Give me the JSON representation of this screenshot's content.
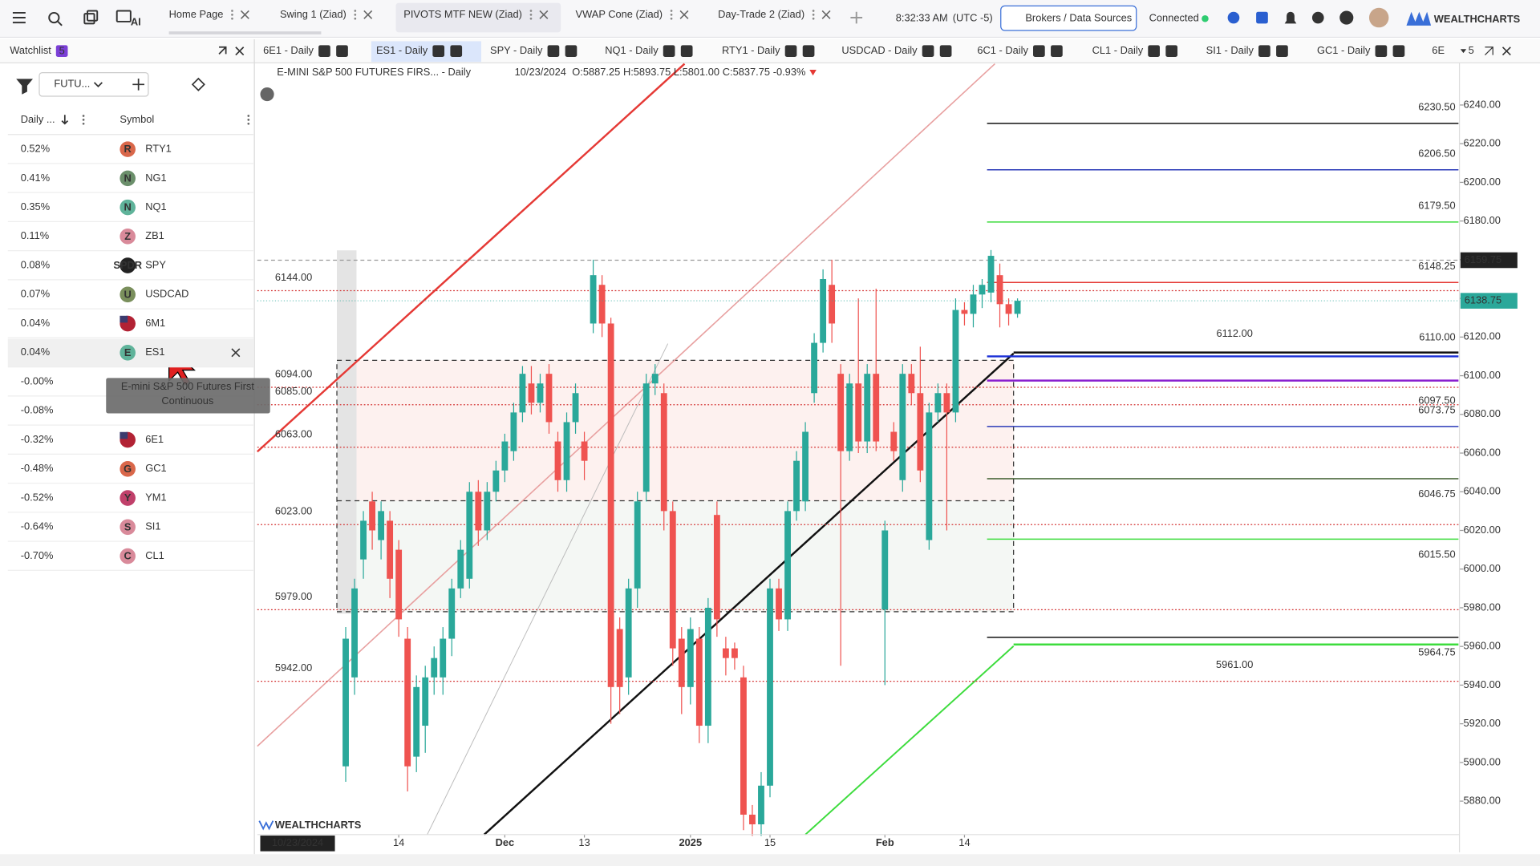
{
  "toolbar": {
    "tabs": [
      {
        "label": "Home Page"
      },
      {
        "label": "Swing 1 (Ziad)"
      },
      {
        "label": "PIVOTS MTF NEW (Ziad)",
        "active": true
      },
      {
        "label": "VWAP Cone (Ziad)"
      },
      {
        "label": "Day-Trade 2 (Ziad)"
      }
    ],
    "ai_label": "AI",
    "clock": "8:32:33 AM",
    "timezone": "(UTC -5)",
    "brokers_button": "Brokers / Data Sources",
    "status": "Connected",
    "brand": "WEALTHCHARTS"
  },
  "chart_tabs": {
    "tabs": [
      {
        "label": "6E1 - Daily"
      },
      {
        "label": "ES1 - Daily",
        "active": true
      },
      {
        "label": "SPY - Daily"
      },
      {
        "label": "NQ1 - Daily"
      },
      {
        "label": "RTY1 - Daily"
      },
      {
        "label": "USDCAD - Daily"
      },
      {
        "label": "6C1 - Daily"
      },
      {
        "label": "CL1 - Daily"
      },
      {
        "label": "SI1 - Daily"
      },
      {
        "label": "GC1 - Daily"
      },
      {
        "label": "6E",
        "truncated": true
      }
    ],
    "badges": [
      "S",
      "T"
    ],
    "layout_count": "5"
  },
  "watchlist": {
    "title": "Watchlist",
    "count": "5",
    "filter": "FUTU...",
    "columns": [
      "Daily ...",
      "Symbol"
    ],
    "rows": [
      {
        "change": "0.52%",
        "symbol": "RTY1",
        "icon": "R",
        "color": "#d9674a"
      },
      {
        "change": "0.41%",
        "symbol": "NG1",
        "icon": "N",
        "color": "#6b8f6b"
      },
      {
        "change": "0.35%",
        "symbol": "NQ1",
        "icon": "N",
        "color": "#5fb39a"
      },
      {
        "change": "0.11%",
        "symbol": "ZB1",
        "icon": "Z",
        "color": "#d98a9a"
      },
      {
        "change": "0.08%",
        "symbol": "SPY",
        "icon": "SPDR",
        "color": "#222222"
      },
      {
        "change": "0.07%",
        "symbol": "USDCAD",
        "icon": "U",
        "color": "#7a8f5c"
      },
      {
        "change": "0.04%",
        "symbol": "6M1",
        "flag": true
      },
      {
        "change": "0.04%",
        "symbol": "ES1",
        "icon": "E",
        "color": "#5fb39a",
        "selected": true
      },
      {
        "change": "-0.00%"
      },
      {
        "change": "-0.08%"
      },
      {
        "change": "-0.32%",
        "symbol": "6E1",
        "flag": true
      },
      {
        "change": "-0.48%",
        "symbol": "GC1",
        "icon": "G",
        "color": "#d9674a"
      },
      {
        "change": "-0.52%",
        "symbol": "YM1",
        "icon": "Y",
        "color": "#c0406a"
      },
      {
        "change": "-0.64%",
        "symbol": "SI1",
        "icon": "S",
        "color": "#d98a9a"
      },
      {
        "change": "-0.70%",
        "symbol": "CL1",
        "icon": "C",
        "color": "#d98a9a"
      }
    ],
    "tooltip": [
      "E-mini S&P 500 Futures First",
      "Continuous"
    ]
  },
  "chart_header": {
    "title": "E-MINI S&P 500 FUTURES FIRS... - Daily",
    "date": "10/23/2024",
    "ohlc": [
      [
        "O:",
        "5887.25"
      ],
      [
        "H:",
        "5893.75"
      ],
      [
        "L:",
        "5801.00"
      ],
      [
        "C:",
        "5837.75"
      ]
    ],
    "change": "-0.93%"
  },
  "chart_data": {
    "type": "candlestick",
    "up_color": "#2aa89a",
    "down_color": "#ef5350",
    "open": [
      5898,
      5944,
      6005,
      6035,
      6015,
      6025,
      6010,
      5964,
      5903,
      5919,
      5944,
      5944,
      5964,
      5990,
      5995,
      6040,
      6020,
      6040,
      6051,
      6061,
      6081,
      6096,
      6086,
      6101,
      6066,
      6046,
      6076,
      6066,
      6127,
      6147,
      6127,
      5969,
      5944,
      5990,
      6040,
      6096,
      6091,
      6030,
      5964,
      5939,
      5964,
      5919,
      6028,
      5959,
      5959,
      5944,
      5873,
      5868,
      5888,
      5990,
      5974,
      6030,
      6035,
      6091,
      6117,
      6147,
      6101,
      6061,
      6096,
      6066,
      6101,
      5979,
      6071,
      6046,
      6101,
      6091,
      6015,
      6081,
      6091,
      6081,
      6134,
      6132,
      6142,
      6143,
      6152,
      6137,
      6132
    ],
    "high": [
      5970,
      5995,
      6030,
      6040,
      6035,
      6030,
      6015,
      5970,
      5945,
      5950,
      5960,
      5970,
      5995,
      6015,
      6045,
      6046,
      6045,
      6056,
      6070,
      6086,
      6105,
      6105,
      6101,
      6106,
      6071,
      6081,
      6096,
      6071,
      6160,
      6152,
      6130,
      5975,
      5995,
      6040,
      6101,
      6106,
      6096,
      6035,
      5970,
      5975,
      5970,
      5985,
      6035,
      5965,
      5962,
      5950,
      5878,
      5895,
      5995,
      5995,
      6035,
      6061,
      6076,
      6122,
      6155,
      6160,
      6106,
      6101,
      6140,
      6106,
      6145,
      6025,
      6076,
      6106,
      6106,
      6115,
      6086,
      6096,
      6096,
      6140,
      6138,
      6147,
      6150,
      6165,
      6158,
      6140,
      6140
    ],
    "low": [
      5890,
      5935,
      5995,
      6010,
      6005,
      5985,
      5965,
      5885,
      5895,
      5905,
      5935,
      5935,
      5955,
      5985,
      5990,
      6012,
      6015,
      6035,
      6045,
      6056,
      6076,
      6080,
      6081,
      6070,
      6040,
      6040,
      6070,
      6046,
      6122,
      6120,
      5920,
      5925,
      5935,
      5980,
      6035,
      6090,
      6020,
      5950,
      5925,
      5930,
      5910,
      5910,
      5965,
      5945,
      5948,
      5865,
      5862,
      5862,
      5882,
      5968,
      5968,
      6025,
      6030,
      6086,
      6112,
      6117,
      5950,
      6056,
      6060,
      6060,
      6061,
      5940,
      6056,
      6040,
      6085,
      6045,
      6010,
      6076,
      6020,
      6076,
      6126,
      6125,
      6135,
      6138,
      6125,
      6126,
      6130
    ],
    "close": [
      5964,
      5990,
      6025,
      6020,
      6030,
      5995,
      5974,
      5898,
      5939,
      5944,
      5954,
      5964,
      5990,
      6010,
      6040,
      6020,
      6040,
      6051,
      6066,
      6081,
      6101,
      6086,
      6096,
      6076,
      6046,
      6076,
      6091,
      6056,
      6152,
      6127,
      5939,
      5939,
      5990,
      6035,
      6096,
      6101,
      6030,
      5959,
      5939,
      5969,
      5919,
      5980,
      5974,
      5954,
      5954,
      5873,
      5868,
      5888,
      5990,
      5974,
      6030,
      6056,
      6071,
      6117,
      6150,
      6127,
      6061,
      6096,
      6066,
      6101,
      6066,
      6020,
      6061,
      6101,
      6091,
      6051,
      6081,
      6091,
      6081,
      6134,
      6132,
      6142,
      6147,
      6162,
      6137,
      6132,
      6138.75
    ],
    "ylim": [
      5862.7,
      6261.3
    ],
    "yticks": [
      {
        "value": 5880,
        "label": "5880.00"
      },
      {
        "value": 5900,
        "label": "5900.00"
      },
      {
        "value": 5920,
        "label": "5920.00"
      },
      {
        "value": 5940,
        "label": "5940.00"
      },
      {
        "value": 5960,
        "label": "5960.00"
      },
      {
        "value": 5980,
        "label": "5980.00"
      },
      {
        "value": 6000,
        "label": "6000.00"
      },
      {
        "value": 6020,
        "label": "6020.00"
      },
      {
        "value": 6040,
        "label": "6040.00"
      },
      {
        "value": 6060,
        "label": "6060.00"
      },
      {
        "value": 6080,
        "label": "6080.00"
      },
      {
        "value": 6100,
        "label": "6100.00"
      },
      {
        "value": 6120,
        "label": "6120.00"
      },
      {
        "value": 6140,
        "label": "6140.00"
      },
      {
        "value": 6160,
        "label": "6160.00"
      },
      {
        "value": 6180,
        "label": "6180.00"
      },
      {
        "value": 6200,
        "label": "6200.00"
      },
      {
        "value": 6220,
        "label": "6220.00"
      },
      {
        "value": 6240,
        "label": "6240.00"
      }
    ],
    "xticks": [
      {
        "value": 6,
        "label": "14"
      },
      {
        "value": 18,
        "label": "Dec"
      },
      {
        "value": 27,
        "label": "13"
      },
      {
        "value": 39,
        "label": "2025"
      },
      {
        "value": 48,
        "label": "15"
      },
      {
        "value": 61,
        "label": "Feb"
      },
      {
        "value": 70,
        "label": "14"
      }
    ],
    "crosshair": {
      "date": "10/23/2024",
      "price": 6159.75
    },
    "last_price": 6138.75,
    "levels": [
      {
        "value": 6144,
        "label": "6144.00"
      },
      {
        "value": 6094,
        "label": "6094.00"
      },
      {
        "value": 6085,
        "label": "6085.00"
      },
      {
        "value": 6063,
        "label": "6063.00"
      },
      {
        "value": 6023,
        "label": "6023.00"
      },
      {
        "value": 5979,
        "label": "5979.00"
      },
      {
        "value": 5942,
        "label": "5942.00"
      }
    ],
    "level_color": "#d32f2f",
    "pivots": [
      {
        "value": 6230.5,
        "label": "6230.50",
        "color": "#111111",
        "side": "above"
      },
      {
        "value": 6206.5,
        "label": "6206.50",
        "color": "#2b3ab8",
        "side": "above"
      },
      {
        "value": 6179.5,
        "label": "6179.50",
        "color": "#3ddc3d",
        "side": "above"
      },
      {
        "value": 6148.25,
        "label": "6148.25",
        "color": "#e53935",
        "side": "above"
      },
      {
        "value": 6112,
        "label": "6112.00",
        "color": "#111111",
        "side": "above",
        "placement": "center",
        "large": true
      },
      {
        "value": 6110,
        "label": "6110.00",
        "color": "#1a2fd6",
        "side": "above",
        "large": true
      },
      {
        "value": 6097.5,
        "label": "6097.50",
        "color": "#8a1fcf",
        "side": "below",
        "large": true
      },
      {
        "value": 6073.75,
        "label": "6073.75",
        "color": "#2b3ab8",
        "side": "above"
      },
      {
        "value": 6046.75,
        "label": "6046.75",
        "color": "#3a5a2a",
        "side": "below"
      },
      {
        "value": 6015.5,
        "label": "6015.50",
        "color": "#3ddc3d",
        "side": "below"
      },
      {
        "value": 5964.75,
        "label": "5964.75",
        "color": "#111111",
        "side": "below"
      },
      {
        "value": 5961,
        "label": "5961.00",
        "color": "#3ddc3d",
        "side": "below",
        "placement": "center",
        "large": true
      }
    ]
  }
}
